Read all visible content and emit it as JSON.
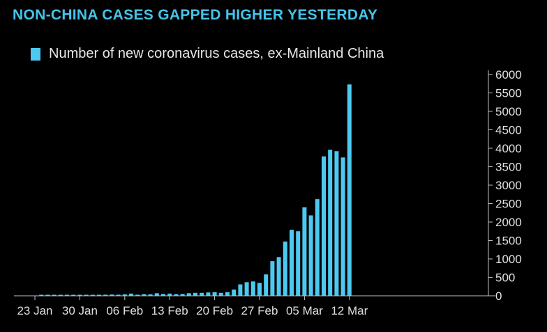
{
  "chart_data": {
    "type": "bar",
    "title": "NON-CHINA CASES GAPPED HIGHER YESTERDAY",
    "series": [
      {
        "name": "Number of new coronavirus cases, ex-Mainland China",
        "color": "#4cc9f0",
        "values": [
          5,
          8,
          10,
          12,
          15,
          12,
          20,
          22,
          20,
          25,
          30,
          35,
          30,
          40,
          60,
          30,
          45,
          40,
          70,
          50,
          60,
          45,
          50,
          70,
          80,
          80,
          90,
          100,
          80,
          100,
          170,
          310,
          370,
          390,
          350,
          580,
          940,
          1050,
          1470,
          1790,
          1750,
          2400,
          2180,
          2620,
          3780,
          3960,
          3920,
          3750,
          5730
        ]
      }
    ],
    "x_start": "2020-01-23",
    "x_tick_labels": [
      "23 Jan",
      "30 Jan",
      "06 Feb",
      "13 Feb",
      "20 Feb",
      "27 Feb",
      "05 Mar",
      "12 Mar"
    ],
    "ylim": [
      0,
      6000
    ],
    "y_ticks": [
      0,
      500,
      1000,
      1500,
      2000,
      2500,
      3000,
      3500,
      4000,
      4500,
      5000,
      5500,
      6000
    ],
    "y_axis_side": "right",
    "legend_position": "top-left",
    "grid": false
  }
}
